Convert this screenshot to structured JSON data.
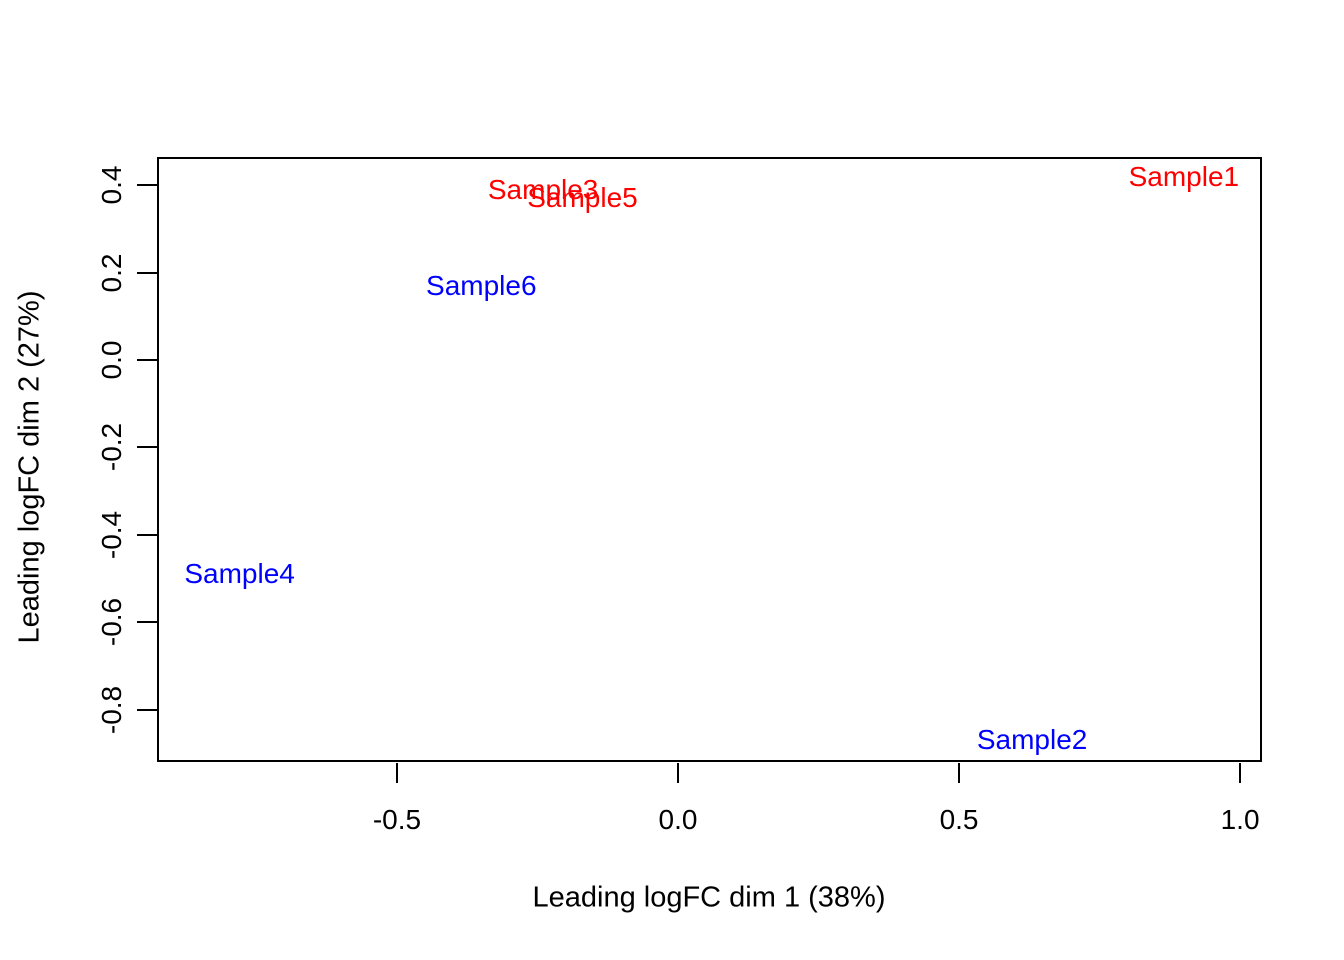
{
  "figure": {
    "background_color": "#ffffff",
    "axis_color": "#000000"
  },
  "chart_data": {
    "type": "scatter",
    "title": "",
    "xlabel": "Leading logFC dim 1 (38%)",
    "ylabel": "Leading logFC dim 2 (27%)",
    "xlim": [
      -0.927,
      1.039
    ],
    "ylim": [
      -0.92,
      0.465
    ],
    "x_ticks": [
      -0.5,
      0.0,
      0.5,
      1.0
    ],
    "x_tick_labels": [
      "-0.5",
      "0.0",
      "0.5",
      "1.0"
    ],
    "y_ticks": [
      0.4,
      0.2,
      0.0,
      -0.2,
      -0.4,
      -0.6,
      -0.8
    ],
    "y_tick_labels": [
      "0.4",
      "0.2",
      "0.0",
      "-0.2",
      "-0.4",
      "-0.6",
      "-0.8"
    ],
    "grid": false,
    "legend": "none",
    "point_style": "text-labels",
    "colors": {
      "group1": "#ff0000",
      "group2": "#0000ff"
    },
    "points": [
      {
        "label": "Sample3",
        "x": -0.24,
        "y": 0.39,
        "color": "#ff0000"
      },
      {
        "label": "Sample5",
        "x": -0.17,
        "y": 0.37,
        "color": "#ff0000"
      },
      {
        "label": "Sample1",
        "x": 0.9,
        "y": 0.42,
        "color": "#ff0000"
      },
      {
        "label": "Sample6",
        "x": -0.35,
        "y": 0.17,
        "color": "#0000ff"
      },
      {
        "label": "Sample4",
        "x": -0.78,
        "y": -0.49,
        "color": "#0000ff"
      },
      {
        "label": "Sample2",
        "x": 0.63,
        "y": -0.87,
        "color": "#0000ff"
      }
    ]
  }
}
